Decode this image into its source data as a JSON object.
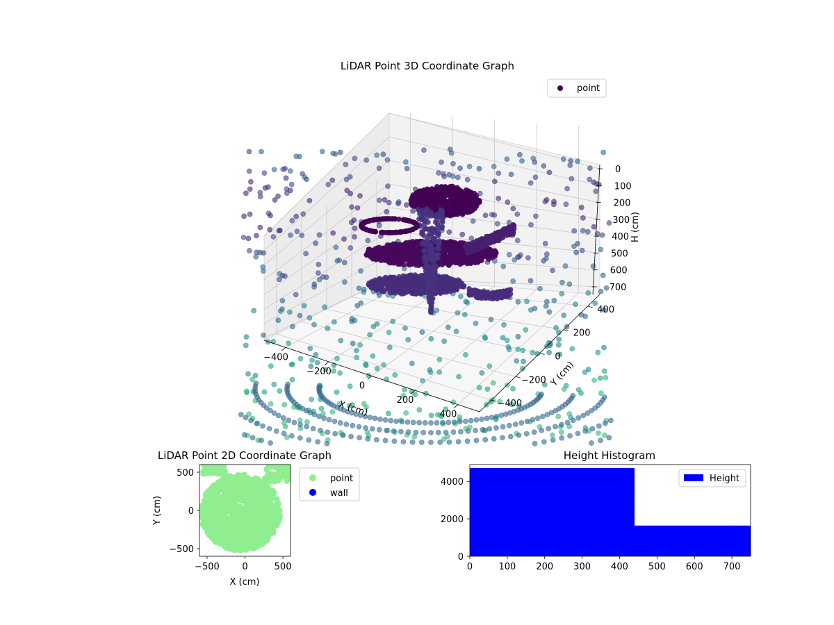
{
  "chart_data": [
    {
      "type": "scatter",
      "subtype": "3d",
      "title": "LiDAR Point 3D Coordinate Graph",
      "xlabel": "X (cm)",
      "ylabel": "Y (cm)",
      "zlabel": "H (cm)",
      "x_ticks": [
        -400,
        -200,
        0,
        200,
        400
      ],
      "x_tick_labels": [
        "−400",
        "−200",
        "0",
        "200",
        "400"
      ],
      "y_ticks": [
        -400,
        -200,
        0,
        200,
        400
      ],
      "y_tick_labels": [
        "−400",
        "−200",
        "0",
        "200",
        "400"
      ],
      "z_ticks": [
        0,
        100,
        200,
        300,
        400,
        500,
        600,
        700
      ],
      "z_tick_labels": [
        "0",
        "100",
        "200",
        "300",
        "400",
        "500",
        "600",
        "700"
      ],
      "z_axis_inverted": true,
      "colormap": "viridis",
      "legend": {
        "entries": [
          "point"
        ],
        "placement": "top-right"
      },
      "marker_color": "#440154",
      "grid": true
    },
    {
      "type": "scatter",
      "title": "LiDAR Point 2D Coordinate Graph",
      "xlabel": "X (cm)",
      "ylabel": "Y (cm)",
      "x_ticks": [
        -500,
        0,
        500
      ],
      "x_tick_labels": [
        "−500",
        "0",
        "500"
      ],
      "y_ticks": [
        -500,
        0,
        500
      ],
      "y_tick_labels": [
        "−500",
        "0",
        "500"
      ],
      "xlim": [
        -600,
        600
      ],
      "ylim": [
        -600,
        600
      ],
      "series": [
        {
          "name": "point",
          "color": "#90ee90"
        },
        {
          "name": "wall",
          "color": "#0000ff"
        }
      ],
      "legend": {
        "placement": "outside-right"
      }
    },
    {
      "type": "bar",
      "subtype": "histogram",
      "title": "Height Histogram",
      "bins": [
        [
          0,
          440
        ],
        [
          440,
          750
        ]
      ],
      "values": [
        4720,
        1640
      ],
      "xlim": [
        0,
        750
      ],
      "ylim": [
        0,
        4900
      ],
      "x_ticks": [
        0,
        100,
        200,
        300,
        400,
        500,
        600,
        700
      ],
      "x_tick_labels": [
        "0",
        "100",
        "200",
        "300",
        "400",
        "500",
        "600",
        "700"
      ],
      "y_ticks": [
        0,
        2000,
        4000
      ],
      "y_tick_labels": [
        "0",
        "2000",
        "4000"
      ],
      "series": [
        {
          "name": "Height",
          "color": "#0000ff"
        }
      ],
      "legend": {
        "placement": "top-right"
      }
    }
  ]
}
